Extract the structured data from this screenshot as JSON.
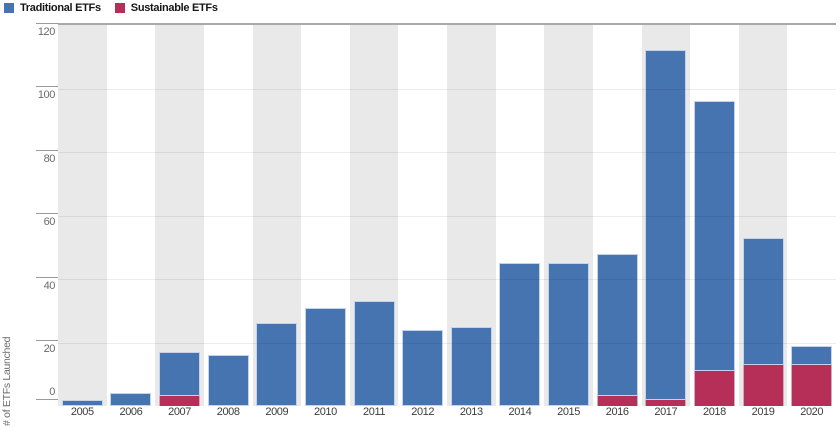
{
  "legend": {
    "items": [
      {
        "label": "Traditional ETFs",
        "color": "#4574b0"
      },
      {
        "label": "Sustainable ETFs",
        "color": "#b62f58"
      }
    ]
  },
  "chart_data": {
    "type": "bar",
    "stacked": true,
    "title": "",
    "xlabel": "",
    "ylabel": "# of ETFs Launched",
    "ylim": [
      0,
      120
    ],
    "yticks": [
      0,
      20,
      40,
      60,
      80,
      100,
      120
    ],
    "grid": "horizontal",
    "legend_position": "top-left",
    "categories": [
      "2005",
      "2006",
      "2007",
      "2008",
      "2009",
      "2010",
      "2011",
      "2012",
      "2013",
      "2014",
      "2015",
      "2016",
      "2017",
      "2018",
      "2019",
      "2020"
    ],
    "series": [
      {
        "name": "Sustainable ETFs",
        "color": "#b62f58",
        "border_color": "#d5a9bd",
        "values": [
          0,
          0,
          3,
          0,
          0,
          0,
          0,
          0,
          0,
          0,
          0,
          3,
          2,
          11,
          13,
          13
        ]
      },
      {
        "name": "Traditional ETFs",
        "color": "#4574b0",
        "border_color": "#c6d1ea",
        "values": [
          2,
          4,
          14,
          16,
          26,
          31,
          33,
          24,
          25,
          45,
          45,
          45,
          110,
          85,
          40,
          6
        ]
      }
    ],
    "totals": [
      2,
      4,
      17,
      16,
      26,
      31,
      33,
      24,
      25,
      45,
      45,
      48,
      112,
      96,
      53,
      19
    ],
    "band_colors": {
      "odd": "#e9e9e9",
      "even": "#ffffff"
    },
    "gridline_color": "#dcdcdc",
    "axis_text_color": "#6b6b6b"
  }
}
